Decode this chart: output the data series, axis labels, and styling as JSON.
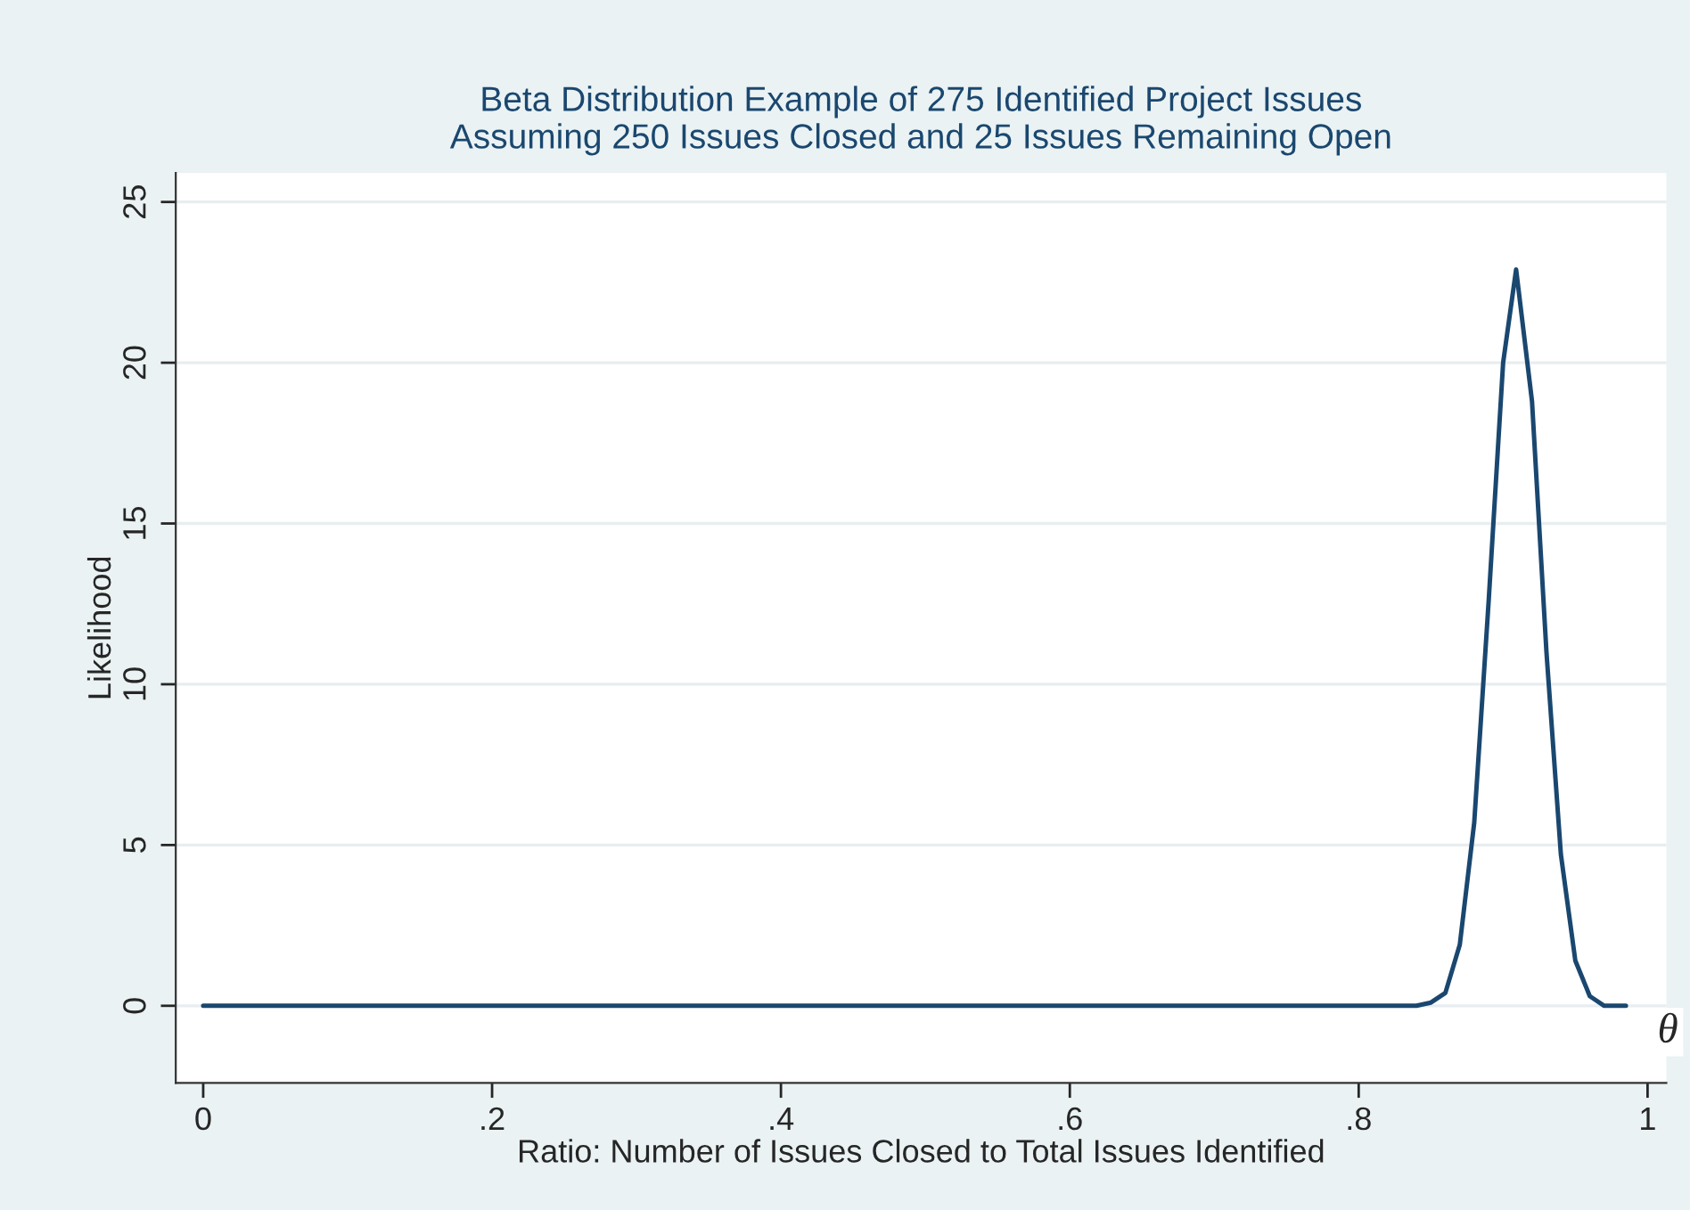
{
  "chart_data": {
    "type": "line",
    "title": "Beta Distribution Example of 275 Identified Project Issues\nAssuming 250 Issues Closed and 25 Issues Remaining Open",
    "xlabel": "Ratio: Number of Issues Closed to Total Issues Identified",
    "ylabel": "Likelihood",
    "series": [
      {
        "color": "#1a476f",
        "x": [
          0,
          0.8,
          0.83,
          0.84,
          0.85,
          0.86,
          0.87,
          0.88,
          0.89,
          0.9,
          0.909,
          0.92,
          0.93,
          0.94,
          0.95,
          0.96,
          0.97,
          0.985
        ],
        "values": [
          0,
          0,
          0,
          0,
          0.1,
          0.4,
          1.9,
          5.7,
          12.6,
          20,
          22.9,
          18.8,
          11,
          4.7,
          1.4,
          0.3,
          0,
          0
        ]
      }
    ],
    "xlim": [
      -0.019,
      1.013
    ],
    "ylim": [
      -2.4,
      25.9
    ],
    "xticks": [
      0,
      {
        "value": 0.2,
        "label": ".2"
      },
      {
        "value": 0.4,
        "label": ".4"
      },
      {
        "value": 0.6,
        "label": ".6"
      },
      {
        "value": 0.8,
        "label": ".8"
      },
      1
    ],
    "yticks": [
      0,
      5,
      10,
      15,
      20,
      25
    ],
    "grid": "y",
    "marker": "none",
    "line_style": "solid",
    "annotations": [
      "θ"
    ]
  }
}
